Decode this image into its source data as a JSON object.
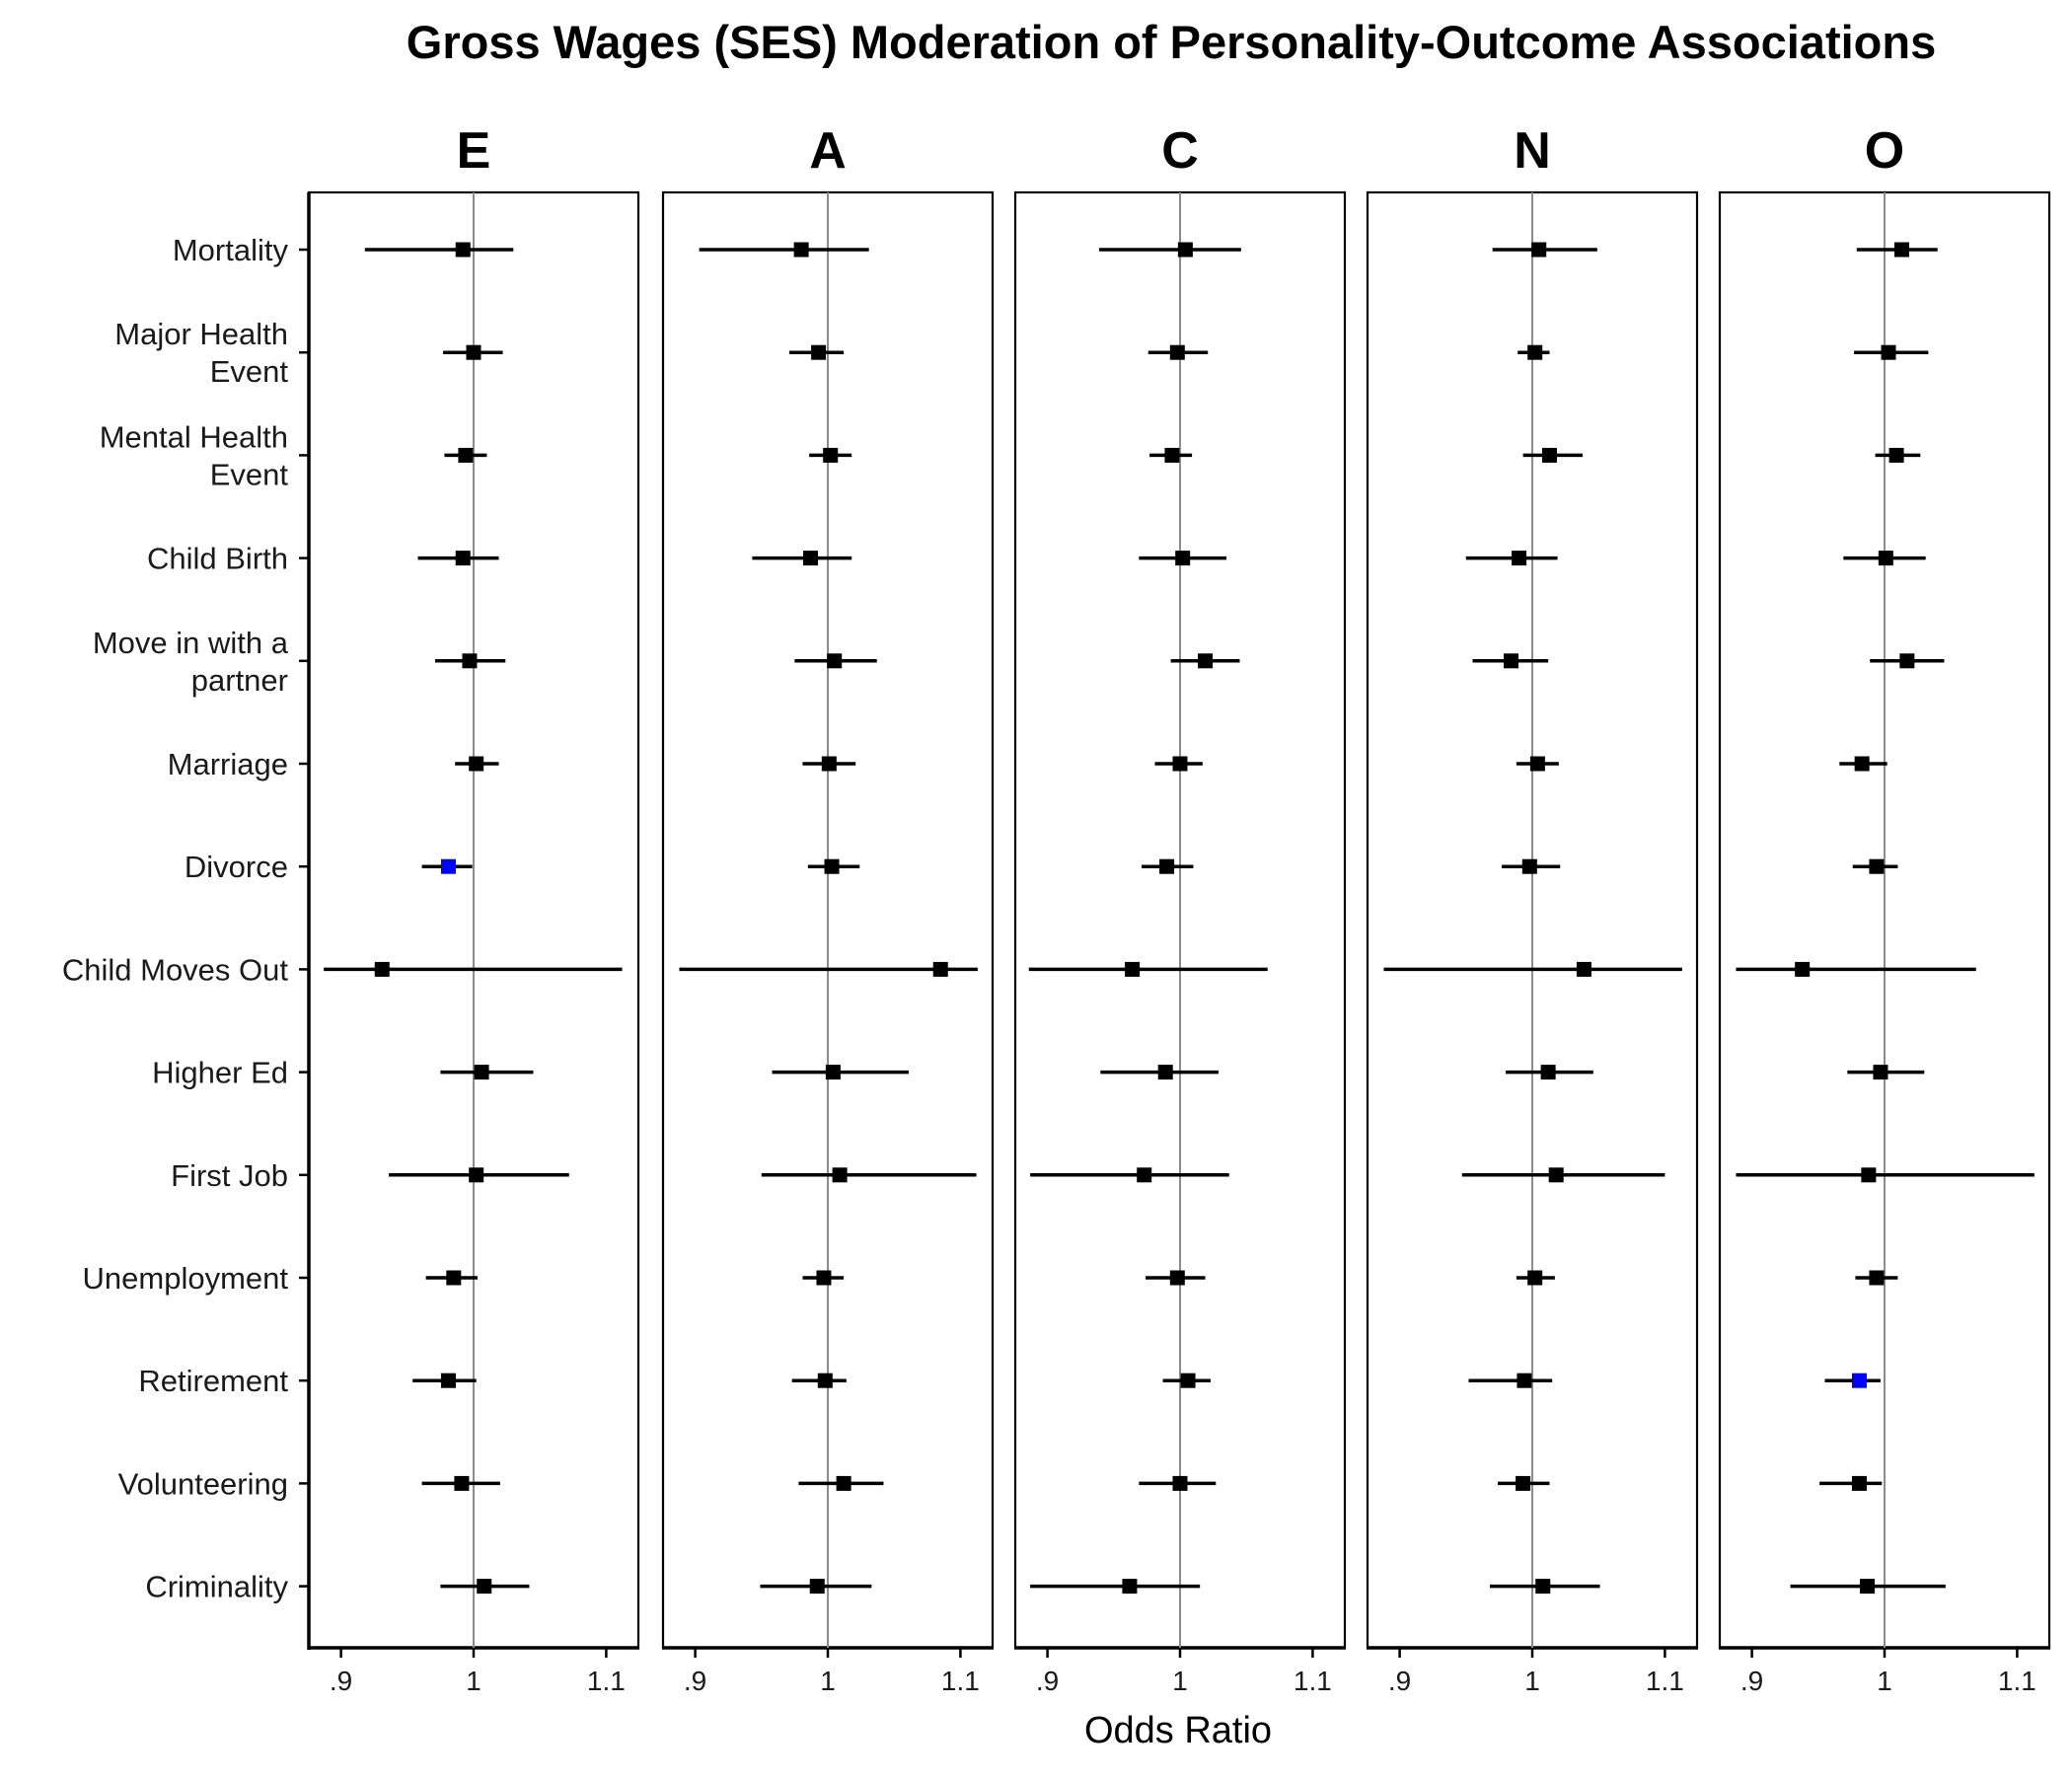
{
  "title": "Gross Wages (SES) Moderation of Personality-Outcome Associations",
  "chart_data": {
    "type": "forest",
    "facets": [
      "E",
      "A",
      "C",
      "N",
      "O"
    ],
    "rows": [
      [
        "Mortality"
      ],
      [
        "Major Health",
        "Event"
      ],
      [
        "Mental Health",
        "Event"
      ],
      [
        "Child Birth"
      ],
      [
        "Move in with a",
        "partner"
      ],
      [
        "Marriage"
      ],
      [
        "Divorce"
      ],
      [
        "Child Moves Out"
      ],
      [
        "Higher Ed"
      ],
      [
        "First Job"
      ],
      [
        "Unemployment"
      ],
      [
        "Retirement"
      ],
      [
        "Volunteering"
      ],
      [
        "Criminality"
      ]
    ],
    "xlabel": "Odds Ratio",
    "xlim": [
      0.875,
      1.12
    ],
    "xticks": [
      0.9,
      1.0,
      1.1
    ],
    "xtick_labels": [
      ".9",
      "1",
      "1.1"
    ],
    "reference_line": 1.0,
    "significant_color": "#0000ff",
    "default_color": "#000000",
    "panels": [
      {
        "facet": "E",
        "estimates": [
          {
            "or": 0.992,
            "lo": 0.918,
            "hi": 1.03
          },
          {
            "or": 1.0,
            "lo": 0.977,
            "hi": 1.022
          },
          {
            "or": 0.994,
            "lo": 0.978,
            "hi": 1.01
          },
          {
            "or": 0.992,
            "lo": 0.958,
            "hi": 1.019
          },
          {
            "or": 0.997,
            "lo": 0.971,
            "hi": 1.024
          },
          {
            "or": 1.002,
            "lo": 0.986,
            "hi": 1.019
          },
          {
            "or": 0.981,
            "lo": 0.961,
            "hi": 0.999,
            "significant": true
          },
          {
            "or": 0.931,
            "lo": 0.887,
            "hi": 1.112
          },
          {
            "or": 1.006,
            "lo": 0.975,
            "hi": 1.045
          },
          {
            "or": 1.002,
            "lo": 0.936,
            "hi": 1.072
          },
          {
            "or": 0.985,
            "lo": 0.964,
            "hi": 1.003
          },
          {
            "or": 0.981,
            "lo": 0.954,
            "hi": 1.002
          },
          {
            "or": 0.991,
            "lo": 0.961,
            "hi": 1.02
          },
          {
            "or": 1.008,
            "lo": 0.975,
            "hi": 1.042
          }
        ]
      },
      {
        "facet": "A",
        "estimates": [
          {
            "or": 0.98,
            "lo": 0.903,
            "hi": 1.031
          },
          {
            "or": 0.993,
            "lo": 0.971,
            "hi": 1.012
          },
          {
            "or": 1.002,
            "lo": 0.986,
            "hi": 1.018
          },
          {
            "or": 0.987,
            "lo": 0.943,
            "hi": 1.018
          },
          {
            "or": 1.005,
            "lo": 0.975,
            "hi": 1.037
          },
          {
            "or": 1.001,
            "lo": 0.981,
            "hi": 1.021
          },
          {
            "or": 1.003,
            "lo": 0.985,
            "hi": 1.024
          },
          {
            "or": 1.085,
            "lo": 0.888,
            "hi": 1.113
          },
          {
            "or": 1.004,
            "lo": 0.958,
            "hi": 1.061
          },
          {
            "or": 1.009,
            "lo": 0.95,
            "hi": 1.112
          },
          {
            "or": 0.997,
            "lo": 0.981,
            "hi": 1.012
          },
          {
            "or": 0.998,
            "lo": 0.973,
            "hi": 1.014
          },
          {
            "or": 1.012,
            "lo": 0.978,
            "hi": 1.042
          },
          {
            "or": 0.992,
            "lo": 0.949,
            "hi": 1.033
          }
        ]
      },
      {
        "facet": "C",
        "estimates": [
          {
            "or": 1.004,
            "lo": 0.939,
            "hi": 1.046
          },
          {
            "or": 0.998,
            "lo": 0.976,
            "hi": 1.021
          },
          {
            "or": 0.994,
            "lo": 0.977,
            "hi": 1.009
          },
          {
            "or": 1.002,
            "lo": 0.969,
            "hi": 1.035
          },
          {
            "or": 1.019,
            "lo": 0.993,
            "hi": 1.045
          },
          {
            "or": 1.0,
            "lo": 0.981,
            "hi": 1.017
          },
          {
            "or": 0.99,
            "lo": 0.971,
            "hi": 1.01
          },
          {
            "or": 0.964,
            "lo": 0.886,
            "hi": 1.066
          },
          {
            "or": 0.989,
            "lo": 0.94,
            "hi": 1.029
          },
          {
            "or": 0.973,
            "lo": 0.887,
            "hi": 1.037
          },
          {
            "or": 0.998,
            "lo": 0.974,
            "hi": 1.019
          },
          {
            "or": 1.006,
            "lo": 0.987,
            "hi": 1.023
          },
          {
            "or": 1.0,
            "lo": 0.969,
            "hi": 1.027
          },
          {
            "or": 0.962,
            "lo": 0.887,
            "hi": 1.015
          }
        ]
      },
      {
        "facet": "N",
        "estimates": [
          {
            "or": 1.005,
            "lo": 0.97,
            "hi": 1.049
          },
          {
            "or": 1.002,
            "lo": 0.989,
            "hi": 1.013
          },
          {
            "or": 1.013,
            "lo": 0.993,
            "hi": 1.038
          },
          {
            "or": 0.99,
            "lo": 0.95,
            "hi": 1.019
          },
          {
            "or": 0.984,
            "lo": 0.955,
            "hi": 1.012
          },
          {
            "or": 1.004,
            "lo": 0.988,
            "hi": 1.02
          },
          {
            "or": 0.998,
            "lo": 0.977,
            "hi": 1.021
          },
          {
            "or": 1.039,
            "lo": 0.888,
            "hi": 1.113
          },
          {
            "or": 1.012,
            "lo": 0.98,
            "hi": 1.046
          },
          {
            "or": 1.018,
            "lo": 0.947,
            "hi": 1.1
          },
          {
            "or": 1.002,
            "lo": 0.988,
            "hi": 1.017
          },
          {
            "or": 0.994,
            "lo": 0.952,
            "hi": 1.015
          },
          {
            "or": 0.993,
            "lo": 0.974,
            "hi": 1.013
          },
          {
            "or": 1.008,
            "lo": 0.968,
            "hi": 1.051
          }
        ]
      },
      {
        "facet": "O",
        "estimates": [
          {
            "or": 1.013,
            "lo": 0.979,
            "hi": 1.04
          },
          {
            "or": 1.003,
            "lo": 0.977,
            "hi": 1.033
          },
          {
            "or": 1.009,
            "lo": 0.993,
            "hi": 1.027
          },
          {
            "or": 1.001,
            "lo": 0.969,
            "hi": 1.031
          },
          {
            "or": 1.017,
            "lo": 0.989,
            "hi": 1.045
          },
          {
            "or": 0.983,
            "lo": 0.966,
            "hi": 1.002
          },
          {
            "or": 0.994,
            "lo": 0.976,
            "hi": 1.01
          },
          {
            "or": 0.938,
            "lo": 0.888,
            "hi": 1.069
          },
          {
            "or": 0.997,
            "lo": 0.972,
            "hi": 1.03
          },
          {
            "or": 0.988,
            "lo": 0.888,
            "hi": 1.113
          },
          {
            "or": 0.994,
            "lo": 0.978,
            "hi": 1.01
          },
          {
            "or": 0.981,
            "lo": 0.955,
            "hi": 0.997,
            "significant": true
          },
          {
            "or": 0.981,
            "lo": 0.951,
            "hi": 0.998
          },
          {
            "or": 0.987,
            "lo": 0.929,
            "hi": 1.046
          }
        ]
      }
    ]
  }
}
